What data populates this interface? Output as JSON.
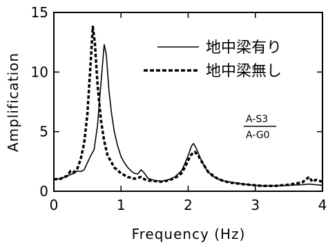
{
  "chart_data": {
    "type": "line",
    "xlabel": "Frequency (Hz)",
    "ylabel": "Amplification",
    "xlim": [
      0,
      4
    ],
    "ylim": [
      0,
      15
    ],
    "x_ticks": [
      0,
      1,
      2,
      3,
      4
    ],
    "y_ticks": [
      0,
      5,
      10,
      15
    ],
    "x_tick_labels": [
      "0",
      "1",
      "2",
      "3",
      "4"
    ],
    "y_tick_labels": [
      "0",
      "5",
      "10",
      "15"
    ],
    "grid": false,
    "legend_position": "top-right",
    "annotation": {
      "numerator": "A-S3",
      "denominator": "A-G0"
    },
    "series": [
      {
        "name": "地中梁有り",
        "style": "solid",
        "color": "#000000",
        "points": [
          [
            0.0,
            1.0
          ],
          [
            0.1,
            1.05
          ],
          [
            0.2,
            1.3
          ],
          [
            0.3,
            1.5
          ],
          [
            0.35,
            1.7
          ],
          [
            0.4,
            1.65
          ],
          [
            0.45,
            1.8
          ],
          [
            0.5,
            2.4
          ],
          [
            0.55,
            3.0
          ],
          [
            0.6,
            3.5
          ],
          [
            0.65,
            5.5
          ],
          [
            0.7,
            9.0
          ],
          [
            0.75,
            12.3
          ],
          [
            0.78,
            11.5
          ],
          [
            0.82,
            8.5
          ],
          [
            0.86,
            6.5
          ],
          [
            0.9,
            5.0
          ],
          [
            0.95,
            3.8
          ],
          [
            1.0,
            2.9
          ],
          [
            1.05,
            2.4
          ],
          [
            1.1,
            2.0
          ],
          [
            1.15,
            1.7
          ],
          [
            1.2,
            1.5
          ],
          [
            1.25,
            1.45
          ],
          [
            1.3,
            1.8
          ],
          [
            1.35,
            1.5
          ],
          [
            1.4,
            1.1
          ],
          [
            1.5,
            0.9
          ],
          [
            1.6,
            0.85
          ],
          [
            1.7,
            0.95
          ],
          [
            1.8,
            1.2
          ],
          [
            1.9,
            1.7
          ],
          [
            1.95,
            2.3
          ],
          [
            2.0,
            3.0
          ],
          [
            2.05,
            3.8
          ],
          [
            2.08,
            4.0
          ],
          [
            2.12,
            3.6
          ],
          [
            2.18,
            2.8
          ],
          [
            2.25,
            2.0
          ],
          [
            2.35,
            1.3
          ],
          [
            2.5,
            0.9
          ],
          [
            2.7,
            0.7
          ],
          [
            2.9,
            0.55
          ],
          [
            3.0,
            0.5
          ],
          [
            3.1,
            0.45
          ],
          [
            3.3,
            0.45
          ],
          [
            3.5,
            0.5
          ],
          [
            3.7,
            0.55
          ],
          [
            3.8,
            0.6
          ],
          [
            3.9,
            0.55
          ],
          [
            4.0,
            0.5
          ]
        ]
      },
      {
        "name": "地中梁無し",
        "style": "dashed",
        "color": "#000000",
        "points": [
          [
            0.0,
            1.0
          ],
          [
            0.1,
            1.05
          ],
          [
            0.2,
            1.3
          ],
          [
            0.25,
            1.7
          ],
          [
            0.3,
            1.6
          ],
          [
            0.35,
            1.9
          ],
          [
            0.4,
            2.7
          ],
          [
            0.45,
            4.0
          ],
          [
            0.5,
            6.5
          ],
          [
            0.55,
            11.0
          ],
          [
            0.58,
            13.8
          ],
          [
            0.61,
            12.5
          ],
          [
            0.65,
            9.0
          ],
          [
            0.7,
            6.0
          ],
          [
            0.75,
            4.2
          ],
          [
            0.8,
            3.0
          ],
          [
            0.9,
            2.0
          ],
          [
            1.0,
            1.5
          ],
          [
            1.1,
            1.2
          ],
          [
            1.2,
            1.05
          ],
          [
            1.3,
            1.2
          ],
          [
            1.35,
            1.0
          ],
          [
            1.4,
            0.9
          ],
          [
            1.5,
            0.85
          ],
          [
            1.6,
            0.8
          ],
          [
            1.7,
            0.9
          ],
          [
            1.8,
            1.1
          ],
          [
            1.9,
            1.5
          ],
          [
            1.95,
            2.0
          ],
          [
            2.0,
            2.6
          ],
          [
            2.05,
            3.1
          ],
          [
            2.1,
            3.3
          ],
          [
            2.15,
            3.0
          ],
          [
            2.2,
            2.5
          ],
          [
            2.3,
            1.6
          ],
          [
            2.45,
            1.0
          ],
          [
            2.6,
            0.75
          ],
          [
            2.8,
            0.6
          ],
          [
            3.0,
            0.5
          ],
          [
            3.1,
            0.45
          ],
          [
            3.3,
            0.45
          ],
          [
            3.5,
            0.55
          ],
          [
            3.6,
            0.65
          ],
          [
            3.7,
            0.75
          ],
          [
            3.8,
            1.2
          ],
          [
            3.85,
            0.8
          ],
          [
            3.9,
            0.95
          ],
          [
            4.0,
            0.8
          ]
        ]
      }
    ]
  }
}
